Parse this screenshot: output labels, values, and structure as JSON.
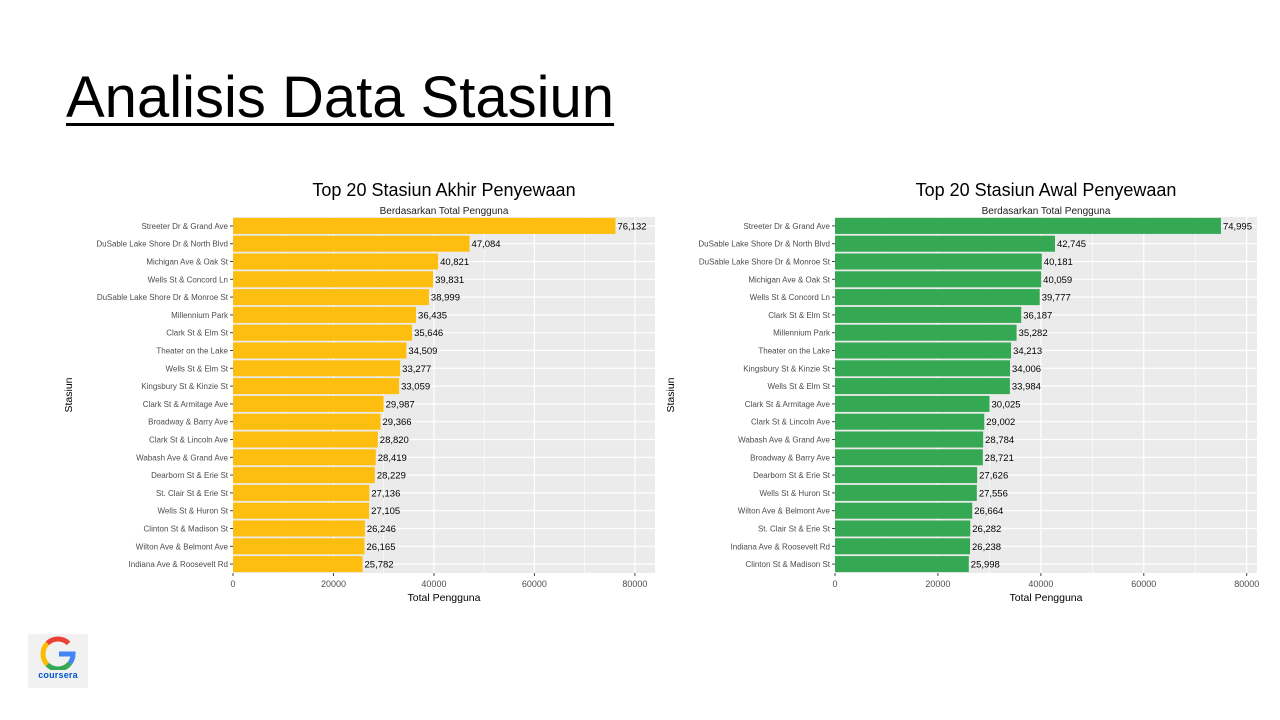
{
  "slide": {
    "title": "Analisis Data Stasiun",
    "logo_text": "coursera"
  },
  "colors": {
    "left_bar": "#FDBE0F",
    "right_bar": "#34A853",
    "panel_bg": "#EBEBEB",
    "grid": "#FFFFFF"
  },
  "chart_data": [
    {
      "type": "bar",
      "orientation": "horizontal",
      "title": "Top 20 Stasiun Akhir Penyewaan",
      "subtitle": "Berdasarkan Total Pengguna",
      "xlabel": "Total Pengguna",
      "ylabel": "Stasiun",
      "xlim": [
        0,
        84000
      ],
      "xticks": [
        0,
        20000,
        40000,
        60000,
        80000
      ],
      "grid": true,
      "categories": [
        "Streeter Dr & Grand Ave",
        "DuSable Lake Shore Dr & North Blvd",
        "Michigan Ave & Oak St",
        "Wells St & Concord Ln",
        "DuSable Lake Shore Dr & Monroe St",
        "Millennium Park",
        "Clark St & Elm St",
        "Theater on the Lake",
        "Wells St & Elm St",
        "Kingsbury St & Kinzie St",
        "Clark St & Armitage Ave",
        "Broadway & Barry Ave",
        "Clark St & Lincoln Ave",
        "Wabash Ave & Grand Ave",
        "Dearborn St & Erie St",
        "St. Clair St & Erie St",
        "Wells St & Huron St",
        "Clinton St & Madison St",
        "Wilton Ave & Belmont Ave",
        "Indiana Ave & Roosevelt Rd"
      ],
      "values": [
        76132,
        47084,
        40821,
        39831,
        38999,
        36435,
        35646,
        34509,
        33277,
        33059,
        29987,
        29366,
        28820,
        28419,
        28229,
        27136,
        27105,
        26246,
        26165,
        25782
      ],
      "labels": [
        "76,132",
        "47,084",
        "40,821",
        "39,831",
        "38,999",
        "36,435",
        "35,646",
        "34,509",
        "33,277",
        "33,059",
        "29,987",
        "29,366",
        "28,820",
        "28,419",
        "28,229",
        "27,136",
        "27,105",
        "26,246",
        "26,165",
        "25,782"
      ],
      "bar_color": "#FDBE0F"
    },
    {
      "type": "bar",
      "orientation": "horizontal",
      "title": "Top 20 Stasiun Awal Penyewaan",
      "subtitle": "Berdasarkan Total Pengguna",
      "xlabel": "Total Pengguna",
      "ylabel": "Stasiun",
      "xlim": [
        0,
        82000
      ],
      "xticks": [
        0,
        20000,
        40000,
        60000,
        80000
      ],
      "grid": true,
      "categories": [
        "Streeter Dr & Grand Ave",
        "DuSable Lake Shore Dr & North Blvd",
        "DuSable Lake Shore Dr & Monroe St",
        "Michigan Ave & Oak St",
        "Wells St & Concord Ln",
        "Clark St & Elm St",
        "Millennium Park",
        "Theater on the Lake",
        "Kingsbury St & Kinzie St",
        "Wells St & Elm St",
        "Clark St & Armitage Ave",
        "Clark St & Lincoln Ave",
        "Wabash Ave & Grand Ave",
        "Broadway & Barry Ave",
        "Dearborn St & Erie St",
        "Wells St & Huron St",
        "Wilton Ave & Belmont Ave",
        "St. Clair St & Erie St",
        "Indiana Ave & Roosevelt Rd",
        "Clinton St & Madison St"
      ],
      "values": [
        74995,
        42745,
        40181,
        40059,
        39777,
        36187,
        35282,
        34213,
        34006,
        33984,
        30025,
        29002,
        28784,
        28721,
        27626,
        27556,
        26664,
        26282,
        26238,
        25998
      ],
      "labels": [
        "74,995",
        "42,745",
        "40,181",
        "40,059",
        "39,777",
        "36,187",
        "35,282",
        "34,213",
        "34,006",
        "33,984",
        "30,025",
        "29,002",
        "28,784",
        "28,721",
        "27,626",
        "27,556",
        "26,664",
        "26,282",
        "26,238",
        "25,998"
      ],
      "bar_color": "#34A853"
    }
  ]
}
